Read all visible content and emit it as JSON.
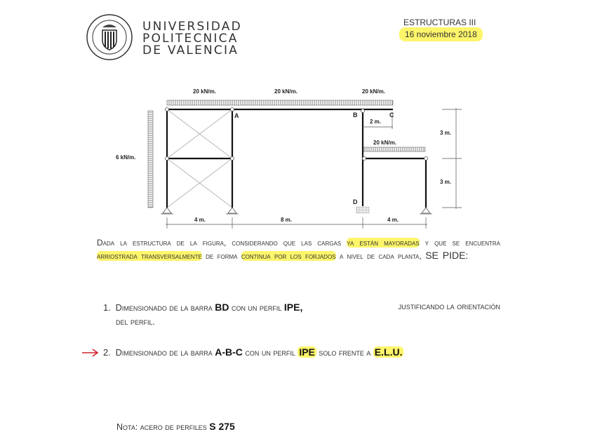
{
  "header": {
    "university_lines": [
      "UNIVERSIDAD",
      "POLITECNICA",
      "DE VALENCIA"
    ],
    "seal_text": [
      "UNIVERSIDAD POLITÉCNICA",
      "VALENCIA"
    ],
    "course": "ESTRUCTURAS III",
    "date": "16 noviembre 2018"
  },
  "figure": {
    "loads_top": [
      "20 kN/m.",
      "20 kN/m.",
      "20 kN/m."
    ],
    "load_lower": "20 kN/m.",
    "load_side": "6 kN/m.",
    "nodes": {
      "a": "A",
      "b": "B",
      "c": "C",
      "d": "D"
    },
    "dims_bottom": [
      "4 m.",
      "8 m.",
      "4 m."
    ],
    "dim_cantilever": "2 m.",
    "dims_right": [
      "3 m.",
      "3 m."
    ]
  },
  "statement": {
    "p1": "Dada la estructura de la figura, considerando que las cargas ",
    "h1": "ya están mayoradas",
    "p2": "  y que se encuentra ",
    "h2": "arriostrada transversalmente",
    "p3": " de forma ",
    "h3": "continua  por los forjados",
    "p4": " a nivel de cada planta, ",
    "p5": "SE PIDE:"
  },
  "items": [
    {
      "num": "1.",
      "t1": "Dimensionado de la barra ",
      "b1": "BD",
      "t2": " con un perfil ",
      "b2": "IPE,",
      "t3": " justificando la orientación",
      "t4": "del perfil."
    },
    {
      "num": "2.",
      "t1": "Dimensionado de la barra ",
      "b1": "A-B-C",
      "t2": " con un perfil ",
      "b2": "IPE",
      "t3": " solo frente a ",
      "b3": "E.L.U."
    }
  ],
  "note": {
    "label": "Nota: acero de perfiles ",
    "value": "S 275"
  },
  "colors": {
    "highlight": "#fdf56a",
    "arrow": "#d0202a"
  }
}
